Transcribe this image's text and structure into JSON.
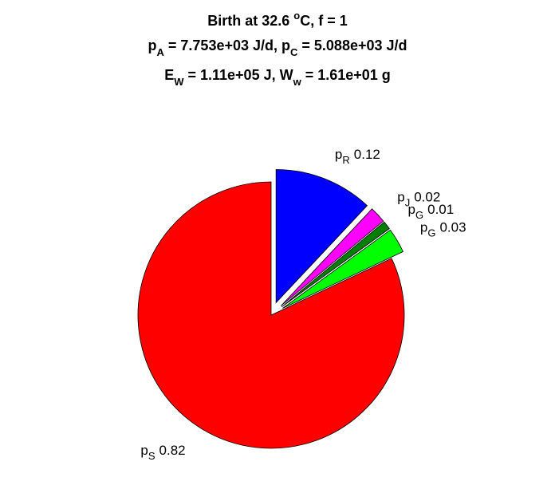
{
  "chart_data": {
    "type": "pie",
    "title": [
      [
        "Birth at 32.6 ",
        "o",
        "C, f = 1"
      ],
      [
        "p",
        "A",
        " = 7.753e+03 J/d, p",
        "C",
        " = 5.088e+03 J/d"
      ],
      [
        "E",
        "W",
        " = 1.11e+05 J, W",
        "w",
        " = 1.61e+01 g"
      ]
    ],
    "categories": [
      [
        "p",
        "R"
      ],
      [
        "p",
        "J"
      ],
      [
        "p",
        "G"
      ],
      [
        "p",
        "G"
      ],
      [
        "p",
        "S"
      ]
    ],
    "values": [
      0.12,
      0.02,
      0.01,
      0.03,
      0.82
    ],
    "colors": [
      "#0000ff",
      "#ff00ff",
      "#008000",
      "#00ff00",
      "#ff0000"
    ],
    "explode": [
      true,
      true,
      true,
      true,
      false
    ]
  }
}
